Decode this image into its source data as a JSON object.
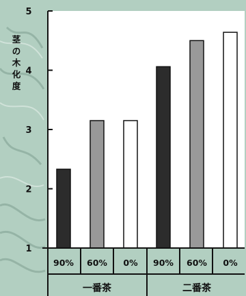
{
  "chart_data": {
    "type": "bar",
    "title": "",
    "xlabel": "",
    "ylabel": "茎の木化度",
    "ylim": [
      1,
      5
    ],
    "yticks": [
      "1",
      "2",
      "3",
      "4",
      "5"
    ],
    "grid": false,
    "groups": [
      {
        "label": "一番茶",
        "categories": [
          "90%",
          "60%",
          "0%"
        ],
        "values": [
          2.33,
          3.15,
          3.15
        ]
      },
      {
        "label": "二番茶",
        "categories": [
          "90%",
          "60%",
          "0%"
        ],
        "values": [
          4.06,
          4.5,
          4.64
        ]
      }
    ],
    "bar_colors": [
      "#2c2c2c",
      "#999999",
      "#ffffff"
    ]
  }
}
